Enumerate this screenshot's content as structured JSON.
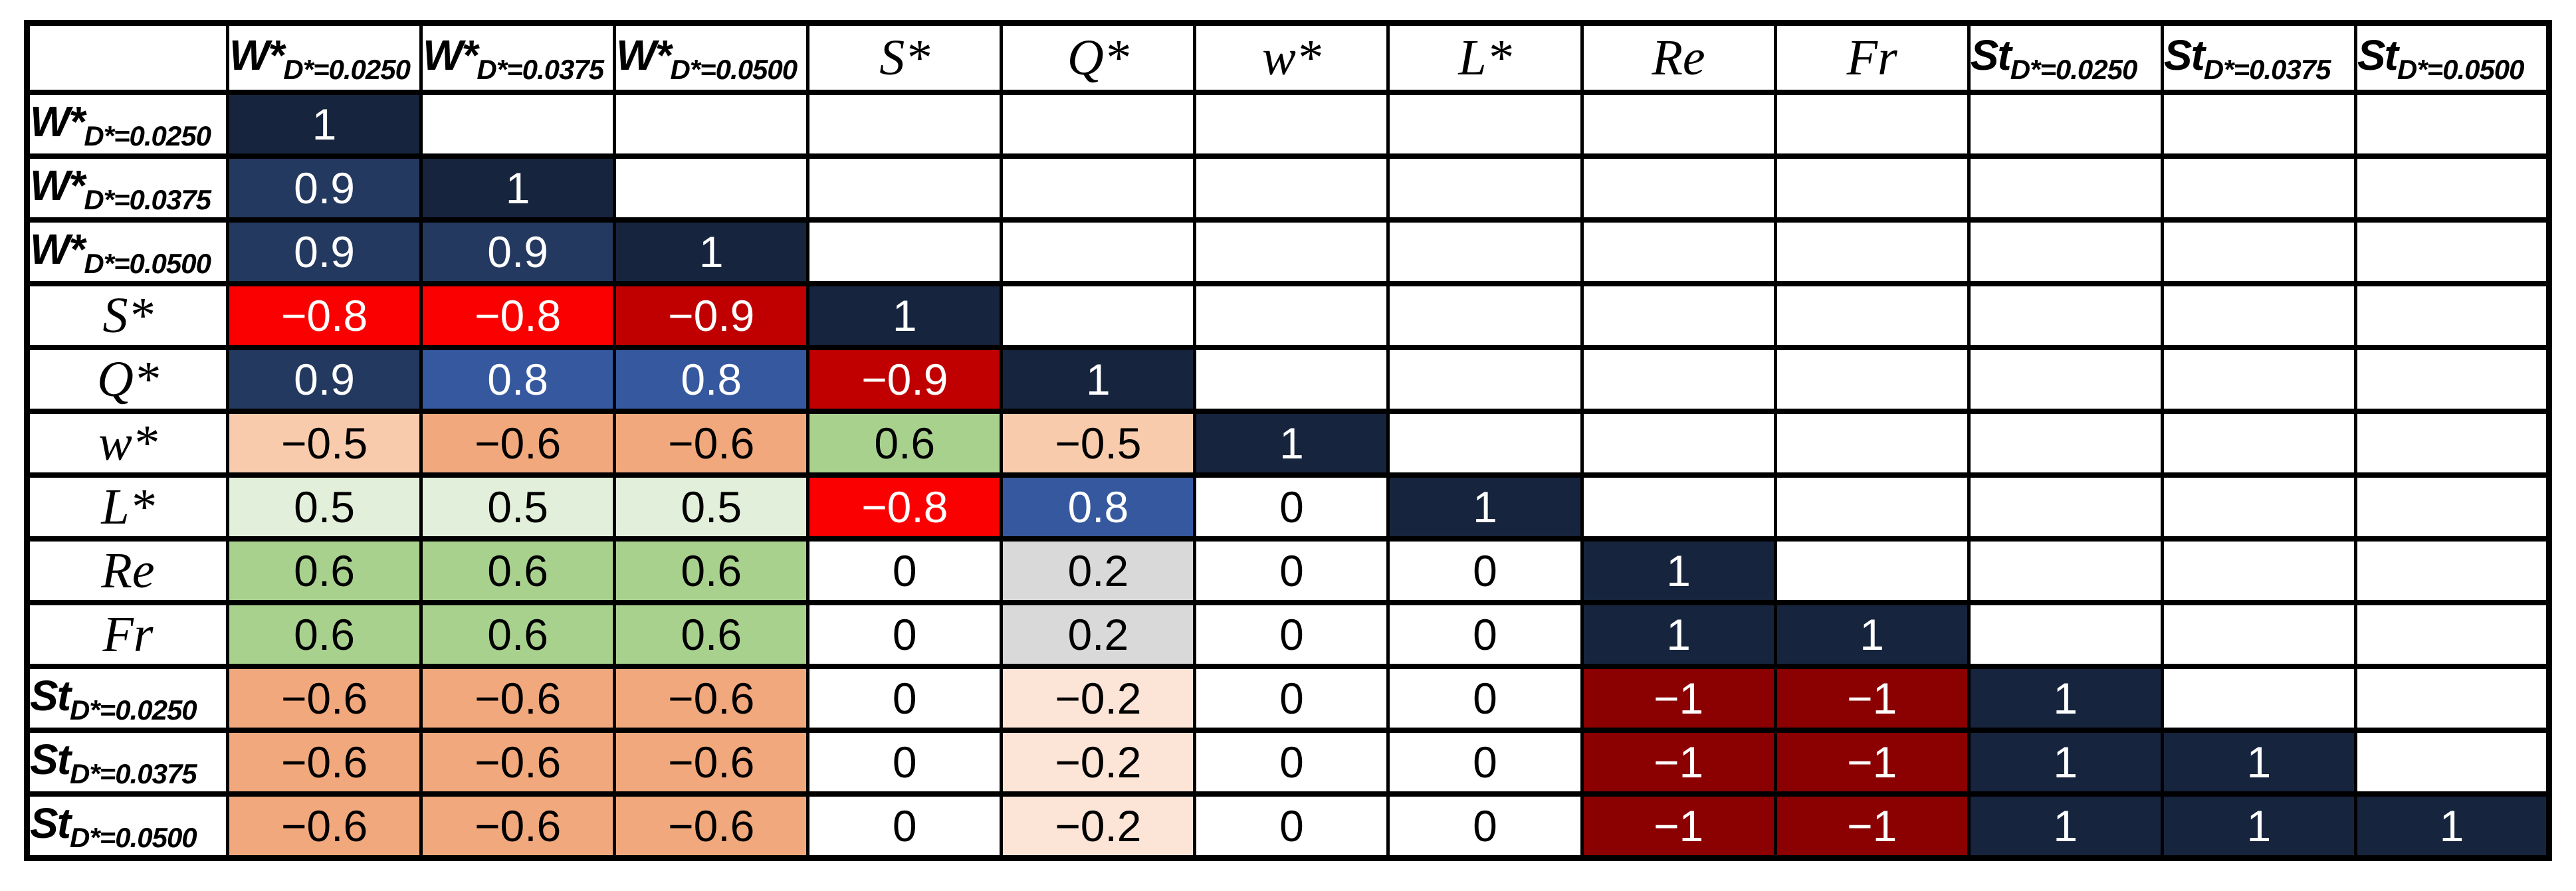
{
  "matrix": {
    "corner_label": "",
    "variables": [
      {
        "id": "W0250",
        "base": "W*",
        "sub": "D*=0.0250",
        "font": "sans"
      },
      {
        "id": "W0375",
        "base": "W*",
        "sub": "D*=0.0375",
        "font": "sans"
      },
      {
        "id": "W0500",
        "base": "W*",
        "sub": "D*=0.0500",
        "font": "sans"
      },
      {
        "id": "S",
        "base": "S*",
        "sub": "",
        "font": "serif"
      },
      {
        "id": "Q",
        "base": "Q*",
        "sub": "",
        "font": "serif"
      },
      {
        "id": "w",
        "base": "w*",
        "sub": "",
        "font": "serif"
      },
      {
        "id": "L",
        "base": "L*",
        "sub": "",
        "font": "serif"
      },
      {
        "id": "Re",
        "base": "Re",
        "sub": "",
        "font": "serif"
      },
      {
        "id": "Fr",
        "base": "Fr",
        "sub": "",
        "font": "serif"
      },
      {
        "id": "St0250",
        "base": "St",
        "sub": "D*=0.0250",
        "font": "sans"
      },
      {
        "id": "St0375",
        "base": "St",
        "sub": "D*=0.0375",
        "font": "sans"
      },
      {
        "id": "St0500",
        "base": "St",
        "sub": "D*=0.0500",
        "font": "sans"
      }
    ],
    "rows": [
      {
        "cells": [
          "1"
        ]
      },
      {
        "cells": [
          "0.9",
          "1"
        ]
      },
      {
        "cells": [
          "0.9",
          "0.9",
          "1"
        ]
      },
      {
        "cells": [
          "−0.8",
          "−0.8",
          "−0.9",
          "1"
        ]
      },
      {
        "cells": [
          "0.9",
          "0.8",
          "0.8",
          "−0.9",
          "1"
        ]
      },
      {
        "cells": [
          "−0.5",
          "−0.6",
          "−0.6",
          "0.6",
          "−0.5",
          "1"
        ]
      },
      {
        "cells": [
          "0.5",
          "0.5",
          "0.5",
          "−0.8",
          "0.8",
          "0",
          "1"
        ]
      },
      {
        "cells": [
          "0.6",
          "0.6",
          "0.6",
          "0",
          "0.2",
          "0",
          "0",
          "1"
        ]
      },
      {
        "cells": [
          "0.6",
          "0.6",
          "0.6",
          "0",
          "0.2",
          "0",
          "0",
          "1",
          "1"
        ]
      },
      {
        "cells": [
          "−0.6",
          "−0.6",
          "−0.6",
          "0",
          "−0.2",
          "0",
          "0",
          "−1",
          "−1",
          "1"
        ]
      },
      {
        "cells": [
          "−0.6",
          "−0.6",
          "−0.6",
          "0",
          "−0.2",
          "0",
          "0",
          "−1",
          "−1",
          "1",
          "1"
        ]
      },
      {
        "cells": [
          "−0.6",
          "−0.6",
          "−0.6",
          "0",
          "−0.2",
          "0",
          "0",
          "−1",
          "−1",
          "1",
          "1",
          "1"
        ]
      }
    ]
  },
  "value_styles": {
    "1": {
      "bg": "#16243E",
      "text": "#FFFFFF"
    },
    "0.9": {
      "bg": "#24395F",
      "text": "#FFFFFF"
    },
    "0.8": {
      "bg": "#36589E",
      "text": "#FFFFFF"
    },
    "0.6": {
      "bg": "#A9D18E",
      "text": "#000000"
    },
    "0.5": {
      "bg": "#E2EFDA",
      "text": "#000000"
    },
    "0.2": {
      "bg": "#D9D9D9",
      "text": "#000000"
    },
    "0": {
      "bg": "#FFFFFF",
      "text": "#000000"
    },
    "−0.2": {
      "bg": "#FCE4D6",
      "text": "#000000"
    },
    "−0.5": {
      "bg": "#F8CBAD",
      "text": "#000000"
    },
    "−0.6": {
      "bg": "#F1A87C",
      "text": "#000000"
    },
    "−0.8": {
      "bg": "#FB0000",
      "text": "#FFFFFF"
    },
    "−0.9": {
      "bg": "#C00000",
      "text": "#FFFFFF"
    },
    "−1": {
      "bg": "#8B0000",
      "text": "#FFFFFF"
    }
  },
  "chart_data": {
    "type": "heatmap",
    "subtype": "correlation-matrix-lower-triangle",
    "categories": [
      "W*_D*=0.0250",
      "W*_D*=0.0375",
      "W*_D*=0.0500",
      "S*",
      "Q*",
      "w*",
      "L*",
      "Re",
      "Fr",
      "St_D*=0.0250",
      "St_D*=0.0375",
      "St_D*=0.0500"
    ],
    "matrix": [
      [
        1,
        null,
        null,
        null,
        null,
        null,
        null,
        null,
        null,
        null,
        null,
        null
      ],
      [
        0.9,
        1,
        null,
        null,
        null,
        null,
        null,
        null,
        null,
        null,
        null,
        null
      ],
      [
        0.9,
        0.9,
        1,
        null,
        null,
        null,
        null,
        null,
        null,
        null,
        null,
        null
      ],
      [
        -0.8,
        -0.8,
        -0.9,
        1,
        null,
        null,
        null,
        null,
        null,
        null,
        null,
        null
      ],
      [
        0.9,
        0.8,
        0.8,
        -0.9,
        1,
        null,
        null,
        null,
        null,
        null,
        null,
        null
      ],
      [
        -0.5,
        -0.6,
        -0.6,
        0.6,
        -0.5,
        1,
        null,
        null,
        null,
        null,
        null,
        null
      ],
      [
        0.5,
        0.5,
        0.5,
        -0.8,
        0.8,
        0,
        1,
        null,
        null,
        null,
        null,
        null
      ],
      [
        0.6,
        0.6,
        0.6,
        0,
        0.2,
        0,
        0,
        1,
        null,
        null,
        null,
        null
      ],
      [
        0.6,
        0.6,
        0.6,
        0,
        0.2,
        0,
        0,
        1,
        1,
        null,
        null,
        null
      ],
      [
        -0.6,
        -0.6,
        -0.6,
        0,
        -0.2,
        0,
        0,
        -1,
        -1,
        1,
        null,
        null
      ],
      [
        -0.6,
        -0.6,
        -0.6,
        0,
        -0.2,
        0,
        0,
        -1,
        -1,
        1,
        1,
        null
      ],
      [
        -0.6,
        -0.6,
        -0.6,
        0,
        -0.2,
        0,
        0,
        -1,
        -1,
        1,
        1,
        1
      ]
    ],
    "value_range": [
      -1,
      1
    ],
    "grid": true,
    "legend": false,
    "color_scale": {
      "1": "#16243E",
      "0.9": "#24395F",
      "0.8": "#36589E",
      "0.6": "#A9D18E",
      "0.5": "#E2EFDA",
      "0.2": "#D9D9D9",
      "0": "#FFFFFF",
      "-0.2": "#FCE4D6",
      "-0.5": "#F8CBAD",
      "-0.6": "#F1A87C",
      "-0.8": "#FB0000",
      "-0.9": "#C00000",
      "-1": "#8B0000"
    }
  }
}
